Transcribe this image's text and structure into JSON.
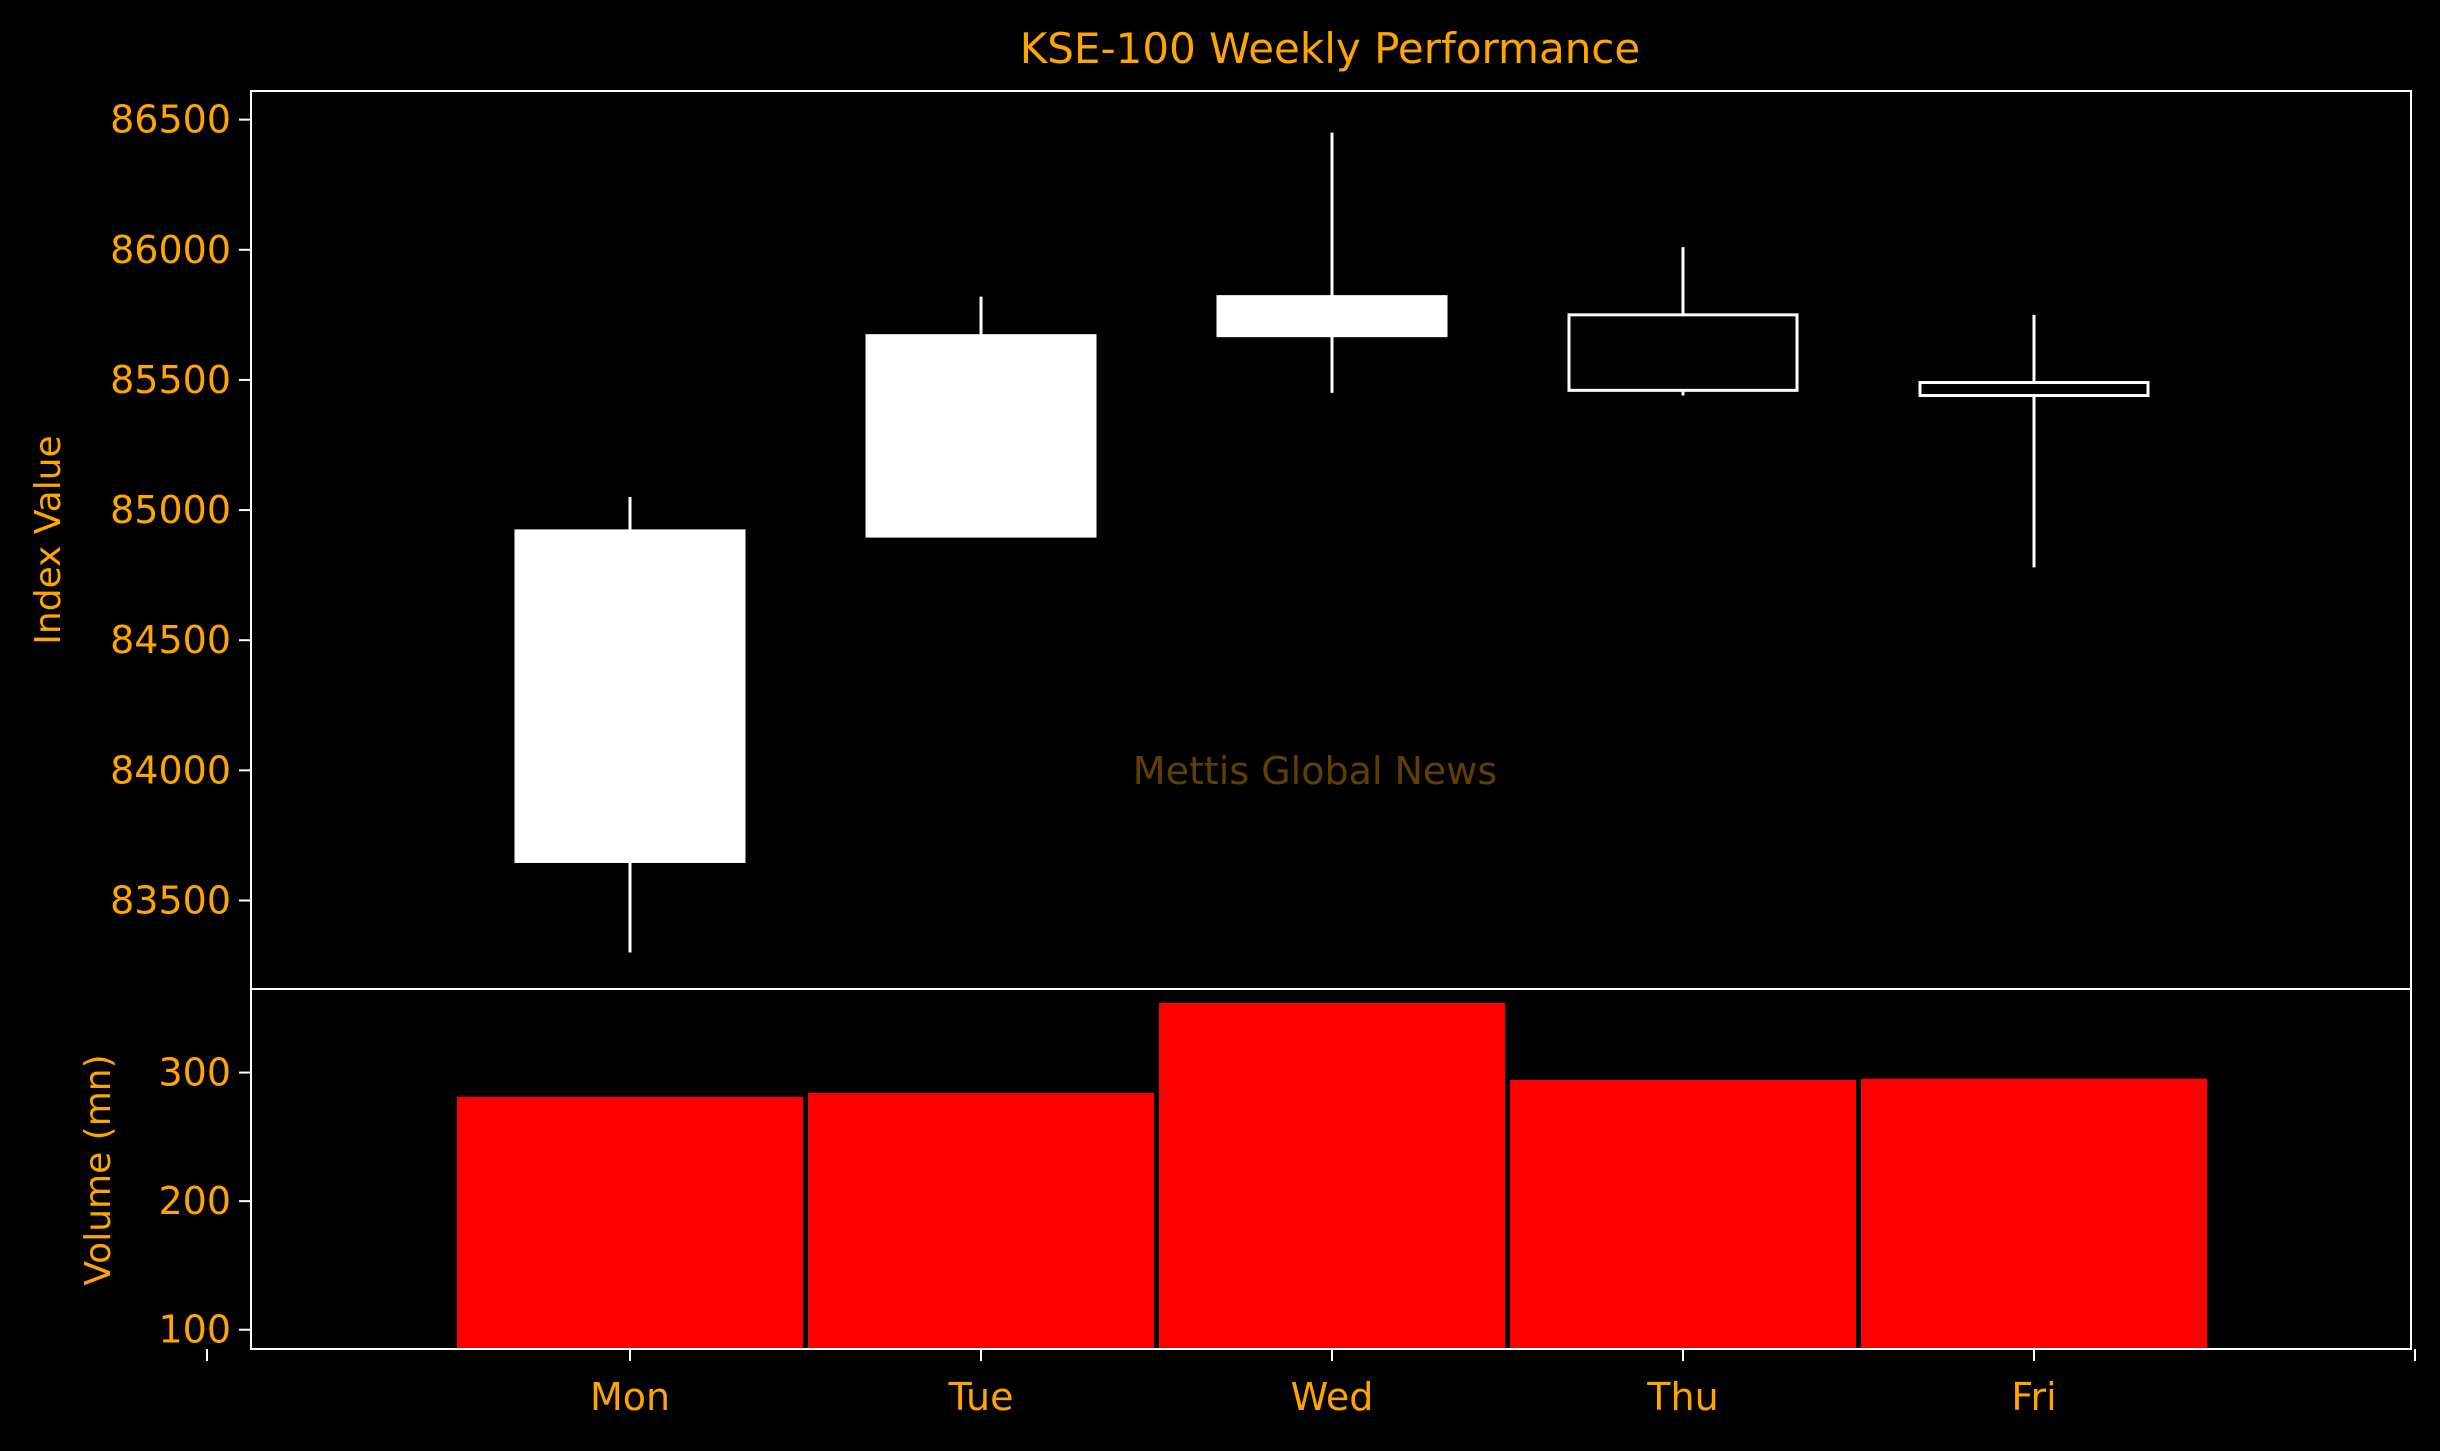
{
  "chart_data": {
    "type": "candlestick",
    "title": "KSE-100 Weekly Performance",
    "watermark": "Mettis Global News",
    "categories": [
      "Mon",
      "Tue",
      "Wed",
      "Thu",
      "Fri"
    ],
    "price": {
      "ylabel": "Index Value",
      "ylim": [
        83160,
        86610
      ],
      "yticks": [
        83500,
        84000,
        84500,
        85000,
        85500,
        86000,
        86500
      ],
      "ytick_labels": [
        "83500",
        "84000",
        "84500",
        "85000",
        "85500",
        "86000",
        "86500"
      ],
      "ohlc": [
        {
          "open": 83650,
          "high": 85050,
          "low": 83300,
          "close": 84920
        },
        {
          "open": 84900,
          "high": 85820,
          "low": 84900,
          "close": 85670
        },
        {
          "open": 85670,
          "high": 86450,
          "low": 85450,
          "close": 85820
        },
        {
          "open": 85750,
          "high": 86010,
          "low": 85440,
          "close": 85460
        },
        {
          "open": 85490,
          "high": 85750,
          "low": 84780,
          "close": 85440
        }
      ]
    },
    "volume": {
      "ylabel": "Volume (mn)",
      "ylim": [
        85,
        365
      ],
      "yticks": [
        100,
        200,
        300
      ],
      "ytick_labels": [
        "100",
        "200",
        "300"
      ],
      "unit": "mn",
      "values": [
        282,
        285,
        355,
        295,
        296
      ]
    },
    "colors": {
      "background": "#000000",
      "text": "#FFA500",
      "candle": "#FFFFFF",
      "volume_bar": "#FF0000",
      "axes": "#FFFFFF"
    }
  }
}
